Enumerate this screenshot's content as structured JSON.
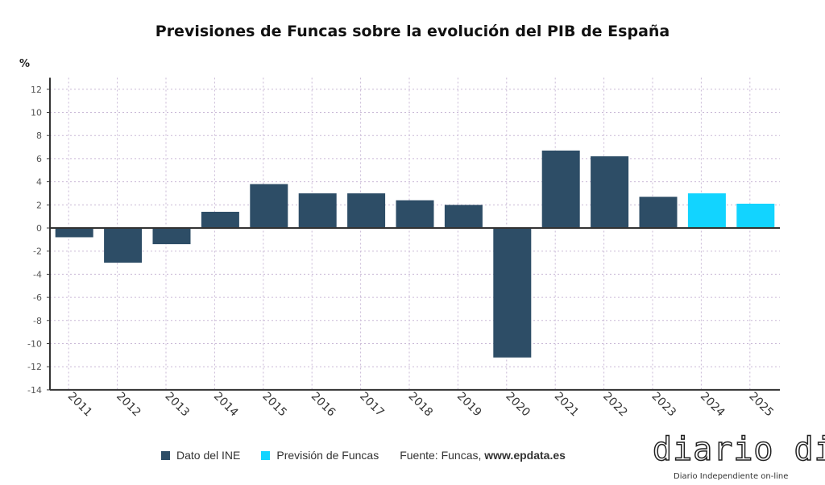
{
  "chart_data": {
    "type": "bar",
    "title": "Previsiones de Funcas sobre la evolución del PIB de España",
    "ylabel": "%",
    "ylim": [
      -14,
      13
    ],
    "yticks": [
      12,
      10,
      8,
      6,
      4,
      2,
      0,
      -2,
      -4,
      -6,
      -8,
      -10,
      -12,
      -14
    ],
    "grid": true,
    "categories": [
      "2011",
      "2012",
      "2013",
      "2014",
      "2015",
      "2016",
      "2017",
      "2018",
      "2019",
      "2020",
      "2021",
      "2022",
      "2023",
      "2024",
      "2025"
    ],
    "series": [
      {
        "name": "Dato del INE",
        "color": "#2d4d66",
        "values": [
          -0.8,
          -3.0,
          -1.4,
          1.4,
          3.8,
          3.0,
          3.0,
          2.4,
          2.0,
          -11.2,
          6.7,
          6.2,
          2.7,
          null,
          null
        ]
      },
      {
        "name": "Previsión de Funcas",
        "color": "#12d4ff",
        "values": [
          null,
          null,
          null,
          null,
          null,
          null,
          null,
          null,
          null,
          null,
          null,
          null,
          null,
          3.0,
          2.1
        ]
      }
    ],
    "legend_position": "bottom",
    "source": "Fuente: Funcas, ",
    "source_site": "www.epdata.es"
  },
  "watermark": {
    "logo": "diario dia",
    "tagline": "Diario Independiente on-line"
  }
}
